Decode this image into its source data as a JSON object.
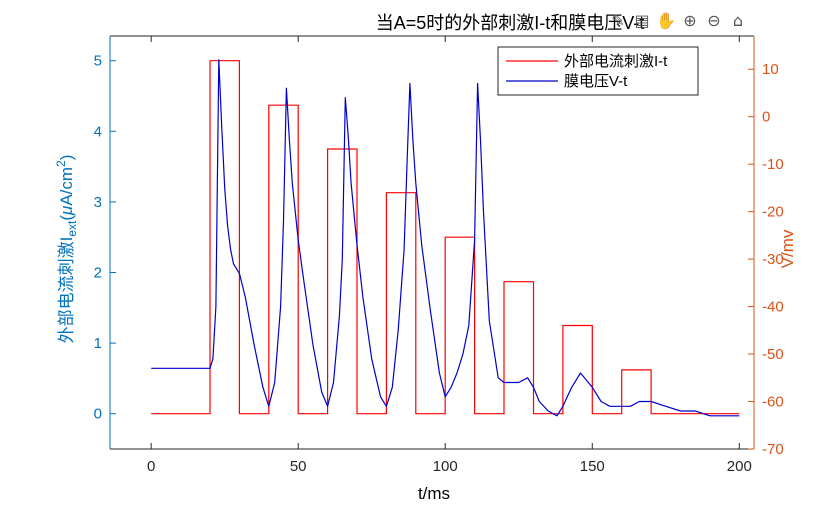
{
  "chart_data": {
    "type": "line",
    "title": "当A=5时的外部刺激I-t和膜电压V-t",
    "xlabel": "t/ms",
    "ylabel_left": "外部电流刺激I_ext(μA/cm²)",
    "ylabel_left_parts": {
      "main": "外部电流刺激I",
      "sub": "ext",
      "unit_open": "(",
      "mu": "μ",
      "unit_rest": "A/cm",
      "sup": "2",
      "unit_close": ")"
    },
    "ylabel_right": "V/mv",
    "xlim": [
      -14,
      205
    ],
    "ylim_left": [
      -0.5,
      5.35
    ],
    "ylim_right": [
      -70,
      17
    ],
    "x_ticks": [
      0,
      50,
      100,
      150,
      200
    ],
    "y_left_ticks": [
      0,
      1,
      2,
      3,
      4,
      5
    ],
    "y_right_ticks": [
      10,
      0,
      -10,
      -20,
      -30,
      -40,
      -50,
      -60,
      -70
    ],
    "legend_position": "top-right",
    "colors": {
      "current": "#ff0000",
      "voltage": "#0000cc",
      "left_axis": "#0072bd",
      "right_axis": "#d95319"
    },
    "series": [
      {
        "name": "外部电流刺激I-t",
        "axis": "left",
        "x": [
          0,
          20,
          20,
          30,
          30,
          40,
          40,
          50,
          50,
          60,
          60,
          70,
          70,
          80,
          80,
          90,
          90,
          100,
          100,
          110,
          110,
          120,
          120,
          130,
          130,
          140,
          140,
          150,
          150,
          160,
          160,
          170,
          170,
          200
        ],
        "y": [
          0,
          0,
          5,
          5,
          0,
          0,
          4.37,
          4.37,
          0,
          0,
          3.75,
          3.75,
          0,
          0,
          3.13,
          3.13,
          0,
          0,
          2.5,
          2.5,
          0,
          0,
          1.87,
          1.87,
          0,
          0,
          1.25,
          1.25,
          0,
          0,
          0.62,
          0.62,
          0,
          0
        ]
      },
      {
        "name": "膜电压V-t",
        "axis": "right",
        "x": [
          0,
          20,
          21,
          22,
          23,
          24,
          25,
          26,
          27,
          28,
          29,
          30,
          32,
          35,
          38,
          40,
          42,
          44,
          45,
          46,
          47,
          48,
          50,
          52,
          55,
          58,
          60,
          62,
          64,
          65,
          66,
          67,
          68,
          70,
          72,
          75,
          78,
          80,
          82,
          84,
          86,
          87,
          88,
          89,
          90,
          92,
          95,
          98,
          100,
          102,
          104,
          106,
          108,
          110,
          111,
          112,
          113,
          115,
          118,
          120,
          125,
          128,
          130,
          132,
          135,
          138,
          140,
          143,
          146,
          150,
          153,
          156,
          160,
          163,
          166,
          170,
          175,
          180,
          185,
          190,
          195,
          200
        ],
        "y": [
          -53,
          -53,
          -51,
          -40,
          12,
          -2,
          -15,
          -23,
          -28,
          -31,
          -32,
          -33,
          -38,
          -48,
          -57,
          -61,
          -56,
          -40,
          -22,
          6,
          -5,
          -14,
          -26,
          -35,
          -48,
          -58,
          -61,
          -56,
          -42,
          -30,
          4,
          -4,
          -14,
          -27,
          -38,
          -51,
          -59,
          -61,
          -57,
          -45,
          -28,
          -10,
          7,
          -5,
          -14,
          -27,
          -41,
          -54,
          -59,
          -57,
          -54,
          -50,
          -44,
          -26,
          7,
          -5,
          -20,
          -43,
          -55,
          -56,
          -56,
          -55,
          -57,
          -60,
          -62,
          -63,
          -61,
          -57,
          -54,
          -57,
          -60,
          -61,
          -61,
          -61,
          -60,
          -60,
          -61,
          -62,
          -62,
          -63,
          -63,
          -63
        ]
      }
    ]
  },
  "toolbar": {
    "icons": [
      "brush-icon",
      "datatips-icon",
      "pan-icon",
      "zoom-in-icon",
      "zoom-out-icon",
      "home-icon"
    ],
    "glyphs": [
      "✎",
      "▤",
      "✋",
      "⊕",
      "⊖",
      "⌂"
    ]
  }
}
